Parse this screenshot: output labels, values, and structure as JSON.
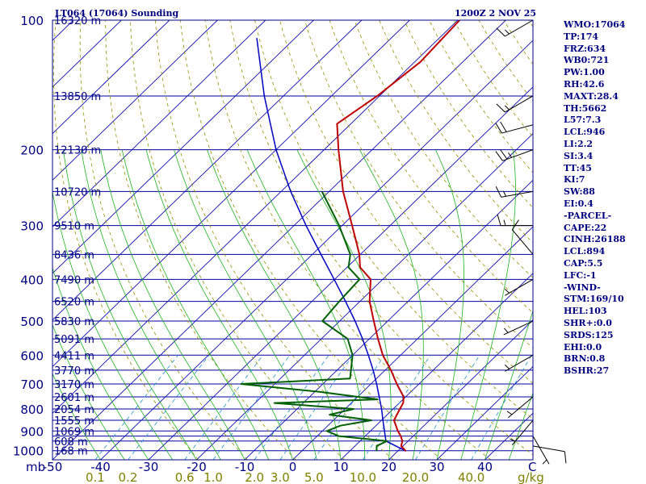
{
  "header": {
    "station": "LT064 (17064) Sounding",
    "valid": "1200Z  2 NOV 25"
  },
  "colors": {
    "frame": "#000080",
    "isobar": "#0000a0",
    "isotherm": "#1010b0",
    "dry_adiabat": "#909000",
    "moist_adiabat": "#20b020",
    "mixing_ratio": "#2090d0",
    "temperature": "#c00000",
    "dewpoint": "#006000",
    "parcel": "#0000c0",
    "text": "#000080",
    "mix_label": "#808000",
    "wind_barb": "#000000"
  },
  "indices": [
    "WMO:17064",
    "TP:174",
    "FRZ:634",
    "WB0:721",
    "PW:1.00",
    "RH:42.6",
    "MAXT:28.4",
    "TH:5662",
    "L57:7.3",
    "LCL:946",
    "LI:2.2",
    "SI:3.4",
    "TT:45",
    "KI:7",
    "SW:88",
    "EI:0.4",
    "-PARCEL-",
    "CAPE:22",
    "CINH:26188",
    "LCL:894",
    "CAP:5.5",
    "LFC:-1",
    "-WIND-",
    "STM:169/10",
    "HEL:103",
    "SHR+:0.0",
    "SRDS:125",
    "EHI:0.0",
    "BRN:0.8",
    "BSHR:27"
  ],
  "chart_data": {
    "type": "skew-t",
    "title": "LT064 (17064) Sounding",
    "valid_time": "1200Z  2 NOV 25",
    "y_axis": {
      "unit": "mb",
      "scale": "log",
      "range": [
        1050,
        100
      ]
    },
    "x_axis": {
      "unit": "C",
      "range": [
        -50,
        50
      ]
    },
    "pressure_ticks": [
      {
        "p": 100,
        "label": "100"
      },
      {
        "p": 200,
        "label": "200"
      },
      {
        "p": 300,
        "label": "300"
      },
      {
        "p": 400,
        "label": "400"
      },
      {
        "p": 500,
        "label": "500"
      },
      {
        "p": 600,
        "label": "600"
      },
      {
        "p": 700,
        "label": "700"
      },
      {
        "p": 800,
        "label": "800"
      },
      {
        "p": 900,
        "label": "900"
      },
      {
        "p": 1000,
        "label": "1000"
      }
    ],
    "isobar_pressures": [
      100,
      150,
      200,
      250,
      300,
      350,
      400,
      450,
      500,
      550,
      600,
      650,
      700,
      750,
      800,
      850,
      900,
      925,
      950,
      1000
    ],
    "height_labels": [
      {
        "p": 100,
        "label": "16320 m"
      },
      {
        "p": 150,
        "label": "13850 m"
      },
      {
        "p": 200,
        "label": "12130 m"
      },
      {
        "p": 250,
        "label": "10720 m"
      },
      {
        "p": 300,
        "label": "9510 m"
      },
      {
        "p": 350,
        "label": "8436 m"
      },
      {
        "p": 400,
        "label": "7490 m"
      },
      {
        "p": 450,
        "label": "6520 m"
      },
      {
        "p": 500,
        "label": "5830 m"
      },
      {
        "p": 550,
        "label": "5091 m"
      },
      {
        "p": 600,
        "label": "4411 m"
      },
      {
        "p": 650,
        "label": "3770 m"
      },
      {
        "p": 700,
        "label": "3170 m"
      },
      {
        "p": 750,
        "label": "2601 m"
      },
      {
        "p": 800,
        "label": "2054 m"
      },
      {
        "p": 850,
        "label": "1555 m"
      },
      {
        "p": 900,
        "label": "1069 m"
      },
      {
        "p": 950,
        "label": "608 m"
      },
      {
        "p": 1000,
        "label": "168 m"
      }
    ],
    "temperature_ticks": [
      -50,
      -40,
      -30,
      -20,
      -10,
      0,
      10,
      20,
      30,
      40
    ],
    "temperature_tick_labels": [
      "-50",
      "-40",
      "-30",
      "-20",
      "-10",
      "0",
      "10",
      "20",
      "30",
      "40"
    ],
    "x_unit_label": "C",
    "y_unit_label": "mb",
    "isotherms": [
      -200,
      -190,
      -180,
      -170,
      -160,
      -150,
      -140,
      -130,
      -120,
      -110,
      -100,
      -90,
      -80,
      -70,
      -60,
      -50,
      -40,
      -30,
      -20,
      -10,
      0,
      10,
      20,
      30,
      40,
      50
    ],
    "dry_adiabats_K": [
      250,
      260,
      270,
      280,
      290,
      300,
      310,
      320,
      330,
      340,
      350,
      360,
      370,
      380,
      390,
      400,
      410,
      420,
      430,
      440,
      450,
      460,
      470
    ],
    "moist_adiabats_C": [
      -40,
      -35,
      -30,
      -25,
      -20,
      -15,
      -10,
      -5,
      0,
      5,
      10,
      15,
      20,
      25,
      30,
      35,
      40,
      45
    ],
    "mixing_ratio_lines": [
      {
        "w": 0.1,
        "label": "0.1"
      },
      {
        "w": 0.2,
        "label": "0.2"
      },
      {
        "w": 0.6,
        "label": "0.6"
      },
      {
        "w": 1.0,
        "label": "1.0"
      },
      {
        "w": 2.0,
        "label": "2.0"
      },
      {
        "w": 3.0,
        "label": "3.0"
      },
      {
        "w": 5.0,
        "label": "5.0"
      },
      {
        "w": 10.0,
        "label": "10.0"
      },
      {
        "w": 20.0,
        "label": "20.0"
      },
      {
        "w": 40.0,
        "label": "40.0"
      }
    ],
    "mixing_ratio_unit": "g/kg",
    "temperature_profile": [
      {
        "p": 1002,
        "t": 21.5
      },
      {
        "p": 1000,
        "t": 21.5
      },
      {
        "p": 975,
        "t": 19.6
      },
      {
        "p": 950,
        "t": 18.8
      },
      {
        "p": 925,
        "t": 17.4
      },
      {
        "p": 900,
        "t": 15.7
      },
      {
        "p": 850,
        "t": 12.6
      },
      {
        "p": 800,
        "t": 11.4
      },
      {
        "p": 775,
        "t": 10.8
      },
      {
        "p": 750,
        "t": 9.6
      },
      {
        "p": 700,
        "t": 5.4
      },
      {
        "p": 650,
        "t": 1.2
      },
      {
        "p": 600,
        "t": -3.7
      },
      {
        "p": 550,
        "t": -8.2
      },
      {
        "p": 500,
        "t": -12.9
      },
      {
        "p": 450,
        "t": -18.0
      },
      {
        "p": 400,
        "t": -22.5
      },
      {
        "p": 375,
        "t": -27.3
      },
      {
        "p": 350,
        "t": -30.2
      },
      {
        "p": 300,
        "t": -37.9
      },
      {
        "p": 250,
        "t": -47.1
      },
      {
        "p": 200,
        "t": -57.0
      },
      {
        "p": 174,
        "t": -62.9
      },
      {
        "p": 150,
        "t": -60.5
      },
      {
        "p": 125,
        "t": -58.8
      },
      {
        "p": 100,
        "t": -59.6
      }
    ],
    "dewpoint_profile": [
      {
        "p": 1002,
        "t": 15.6
      },
      {
        "p": 1000,
        "t": 15.5
      },
      {
        "p": 975,
        "t": 14.5
      },
      {
        "p": 950,
        "t": 15.6
      },
      {
        "p": 925,
        "t": 4.5
      },
      {
        "p": 900,
        "t": 0.9
      },
      {
        "p": 875,
        "t": 2.6
      },
      {
        "p": 850,
        "t": 7.9
      },
      {
        "p": 825,
        "t": -2.0
      },
      {
        "p": 800,
        "t": 1.8
      },
      {
        "p": 775,
        "t": -16.0
      },
      {
        "p": 760,
        "t": 4.7
      },
      {
        "p": 730,
        "t": -9.0
      },
      {
        "p": 700,
        "t": -27.0
      },
      {
        "p": 680,
        "t": -5.5
      },
      {
        "p": 600,
        "t": -10.0
      },
      {
        "p": 550,
        "t": -14.5
      },
      {
        "p": 500,
        "t": -23.6
      },
      {
        "p": 450,
        "t": -24.3
      },
      {
        "p": 400,
        "t": -24.8
      },
      {
        "p": 375,
        "t": -29.7
      },
      {
        "p": 350,
        "t": -32.1
      },
      {
        "p": 300,
        "t": -40.6
      },
      {
        "p": 250,
        "t": -51.5
      }
    ],
    "parcel_profile": [
      {
        "p": 1002,
        "t": 21.7
      },
      {
        "p": 950,
        "t": 15.4
      },
      {
        "p": 900,
        "t": 12.9
      },
      {
        "p": 850,
        "t": 10.3
      },
      {
        "p": 800,
        "t": 7.6
      },
      {
        "p": 750,
        "t": 4.5
      },
      {
        "p": 700,
        "t": 1.2
      },
      {
        "p": 650,
        "t": -2.5
      },
      {
        "p": 600,
        "t": -6.7
      },
      {
        "p": 550,
        "t": -11.4
      },
      {
        "p": 500,
        "t": -16.8
      },
      {
        "p": 450,
        "t": -23.0
      },
      {
        "p": 400,
        "t": -30.1
      },
      {
        "p": 350,
        "t": -38.2
      },
      {
        "p": 300,
        "t": -47.5
      },
      {
        "p": 250,
        "t": -58.0
      },
      {
        "p": 200,
        "t": -70.0
      },
      {
        "p": 150,
        "t": -84.0
      },
      {
        "p": 110,
        "t": -98.0
      }
    ],
    "wind_profile": [
      {
        "p": 975,
        "dir": 100,
        "spd": 10
      },
      {
        "p": 925,
        "dir": 150,
        "spd": 5
      },
      {
        "p": 850,
        "dir": 220,
        "spd": 5
      },
      {
        "p": 750,
        "dir": 230,
        "spd": 5
      },
      {
        "p": 600,
        "dir": 240,
        "spd": 5
      },
      {
        "p": 500,
        "dir": 245,
        "spd": 5
      },
      {
        "p": 400,
        "dir": 240,
        "spd": 5
      },
      {
        "p": 350,
        "dir": 320,
        "spd": 10
      },
      {
        "p": 300,
        "dir": 270,
        "spd": 15
      },
      {
        "p": 250,
        "dir": 260,
        "spd": 15
      },
      {
        "p": 200,
        "dir": 250,
        "spd": 25
      },
      {
        "p": 175,
        "dir": 255,
        "spd": 20
      },
      {
        "p": 150,
        "dir": 240,
        "spd": 15
      },
      {
        "p": 100,
        "dir": 240,
        "spd": 15
      }
    ]
  }
}
